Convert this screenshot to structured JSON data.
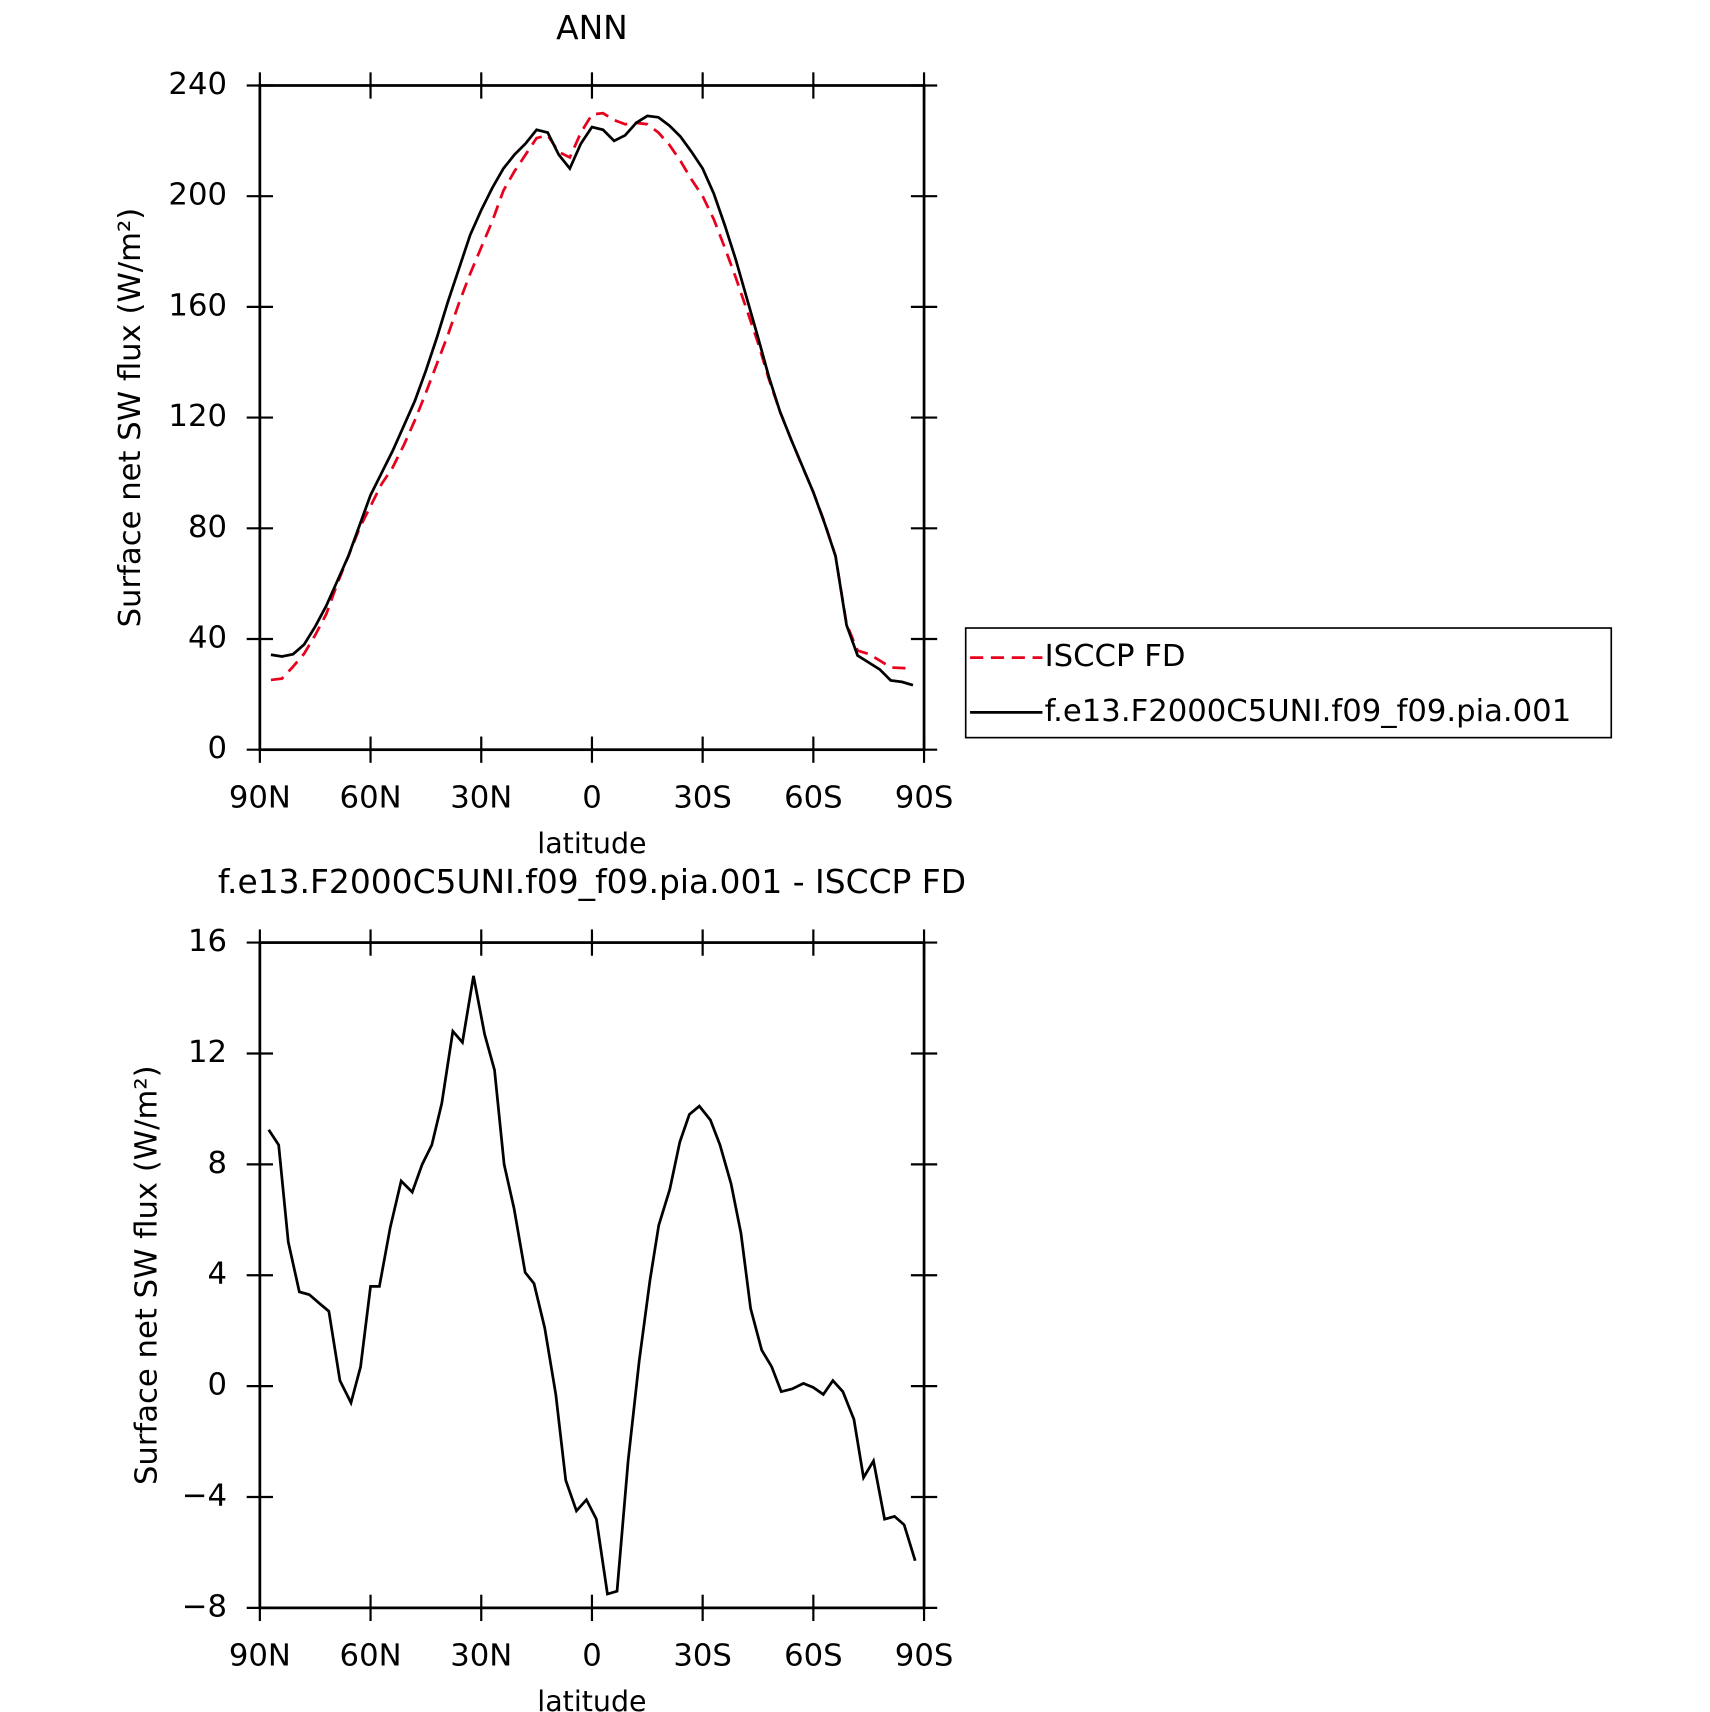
{
  "chart_data": [
    {
      "type": "line",
      "title": "ANN",
      "xlabel": "latitude",
      "ylabel": "Surface net SW flux (W/m²)",
      "xlim": [
        90,
        -90
      ],
      "xticks": [
        {
          "value": 90,
          "label": "90N"
        },
        {
          "value": 60,
          "label": "60N"
        },
        {
          "value": 30,
          "label": "30N"
        },
        0,
        {
          "value": -30,
          "label": "30S"
        },
        {
          "value": -60,
          "label": "60S"
        },
        {
          "value": -90,
          "label": "90S"
        }
      ],
      "ylim": [
        0,
        240
      ],
      "yticks": [
        0,
        40,
        80,
        120,
        160,
        200,
        240
      ],
      "legend": "right",
      "x": [
        87,
        84,
        81,
        78,
        75,
        72,
        69,
        66,
        63,
        60,
        57,
        54,
        51,
        48,
        45,
        42,
        39,
        36,
        33,
        30,
        27,
        24,
        21,
        18,
        15,
        12,
        9,
        6,
        3,
        0,
        -3,
        -6,
        -9,
        -12,
        -15,
        -18,
        -21,
        -24,
        -27,
        -30,
        -33,
        -36,
        -39,
        -42,
        -45,
        -48,
        -51,
        -54,
        -57,
        -60,
        -63,
        -66,
        -69,
        -72,
        -75,
        -78,
        -81,
        -84,
        -87
      ],
      "series": [
        {
          "name": "ISCCP FD",
          "color": "#e8001c",
          "dash": "dashed",
          "values": [
            25.2,
            25.7,
            30,
            34.7,
            41.4,
            49,
            60,
            70,
            80,
            88,
            96,
            102,
            110,
            119,
            129,
            139.5,
            150,
            161.5,
            172,
            181.5,
            191,
            202,
            209,
            215,
            221,
            222,
            216,
            214,
            223,
            229.5,
            230,
            227.5,
            226,
            226.5,
            226,
            223,
            218.5,
            212.7,
            206,
            200,
            191.7,
            181.4,
            170.5,
            158.8,
            147,
            133.7,
            122,
            112,
            102.4,
            93,
            82.3,
            70,
            45.4,
            35.8,
            34.6,
            32.2,
            29.7,
            29.5,
            29.3
          ]
        },
        {
          "name": "f.e13.F2000C5UNI.f09_f09.pia.001",
          "color": "#000000",
          "dash": "solid",
          "values": [
            34.3,
            33.7,
            34.5,
            38,
            44.5,
            52,
            61,
            70,
            81,
            92,
            100,
            108,
            117,
            126,
            137,
            149,
            162,
            174,
            186,
            195,
            203,
            210,
            215,
            219,
            224,
            223,
            215,
            210,
            219,
            225,
            224,
            220,
            222,
            226.5,
            229,
            228.5,
            225.5,
            221.5,
            216,
            210,
            201,
            189.5,
            177,
            163,
            149,
            134.5,
            122,
            112,
            102.5,
            93,
            82,
            70,
            45,
            34,
            31.5,
            29,
            25,
            24.5,
            23.3
          ]
        }
      ]
    },
    {
      "type": "line",
      "title": "f.e13.F2000C5UNI.f09_f09.pia.001 - ISCCP FD",
      "xlabel": "latitude",
      "ylabel": "Surface net SW flux (W/m²)",
      "xlim": [
        90,
        -90
      ],
      "xticks": [
        {
          "value": 90,
          "label": "90N"
        },
        {
          "value": 60,
          "label": "60N"
        },
        {
          "value": 30,
          "label": "30N"
        },
        0,
        {
          "value": -30,
          "label": "30S"
        },
        {
          "value": -60,
          "label": "60S"
        },
        {
          "value": -90,
          "label": "90S"
        }
      ],
      "ylim": [
        -8,
        16
      ],
      "yticks": [
        {
          "value": -8,
          "label": "−8"
        },
        {
          "value": -4,
          "label": "−4"
        },
        0,
        4,
        8,
        12,
        16
      ],
      "x": [
        87.6,
        84.9,
        82.3,
        79.3,
        76.6,
        74,
        71.3,
        68.3,
        65.3,
        62.7,
        60,
        57.6,
        54.7,
        51.7,
        48.7,
        46,
        43.4,
        40.7,
        37.7,
        35.1,
        32.1,
        29.1,
        26.4,
        23.8,
        21.1,
        18.1,
        15.7,
        12.8,
        9.8,
        7.1,
        4.2,
        1.5,
        -1.2,
        -4.2,
        -6.8,
        -9.8,
        -12.8,
        -15.7,
        -18.1,
        -21.1,
        -23.8,
        -26.4,
        -29.1,
        -32.1,
        -34.7,
        -37.7,
        -40.4,
        -43,
        -46,
        -48.7,
        -51.3,
        -54.3,
        -57.3,
        -60,
        -62.7,
        -65.3,
        -68,
        -71,
        -73.6,
        -76.3,
        -79.3,
        -82,
        -84.6,
        -87.6
      ],
      "series": [
        {
          "color": "#000000",
          "dash": "solid",
          "values": [
            9.25,
            8.7,
            5.2,
            3.4,
            3.3,
            3,
            2.7,
            0.2,
            -0.6,
            0.7,
            3.6,
            3.6,
            5.7,
            7.4,
            7,
            8,
            8.7,
            10.2,
            12.8,
            12.4,
            14.8,
            12.7,
            11.4,
            8,
            6.4,
            4.1,
            3.7,
            2.1,
            -0.3,
            -3.4,
            -4.5,
            -4.1,
            -4.8,
            -7.5,
            -7.4,
            -2.7,
            0.9,
            3.8,
            5.8,
            7.1,
            8.8,
            9.8,
            10.1,
            9.6,
            8.7,
            7.3,
            5.5,
            2.8,
            1.3,
            0.7,
            -0.2,
            -0.1,
            0.1,
            -0.05,
            -0.3,
            0.2,
            -0.2,
            -1.2,
            -3.3,
            -2.7,
            -4.8,
            -4.7,
            -5,
            -6.3
          ]
        }
      ]
    }
  ]
}
